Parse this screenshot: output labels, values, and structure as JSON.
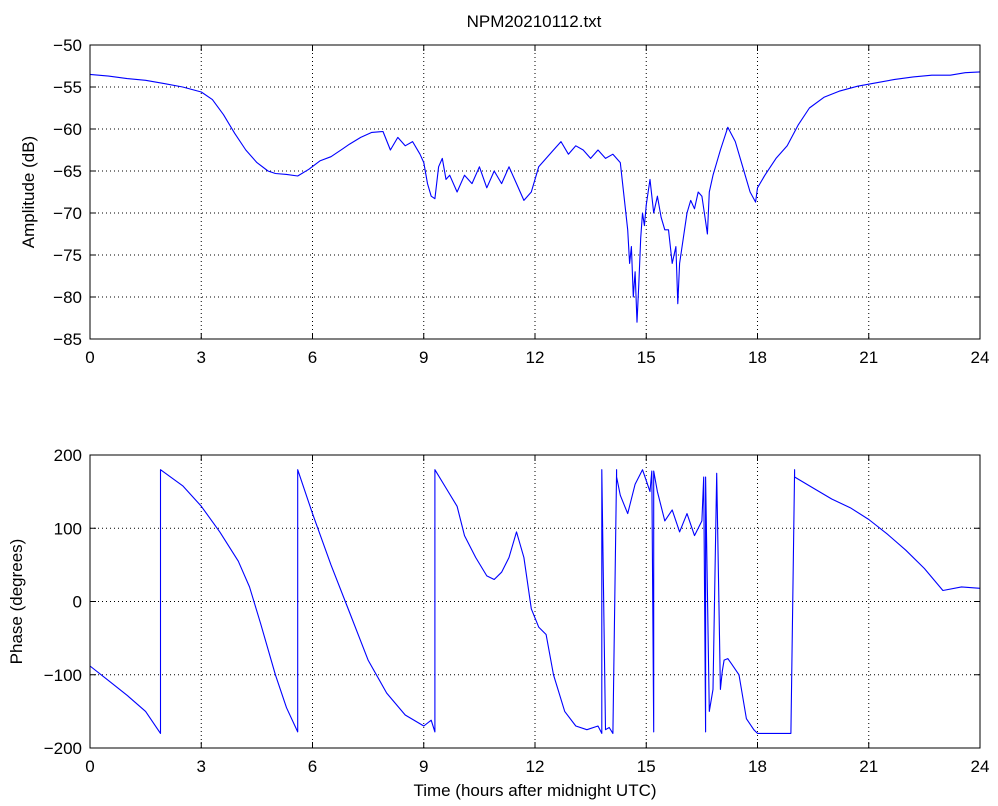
{
  "title": "NPM20210112.txt",
  "colors": {
    "series": "#0000ff",
    "axis": "#000000",
    "grid": "#000000",
    "background": "#ffffff"
  },
  "chart_data": [
    {
      "type": "line",
      "title": "NPM20210112.txt",
      "xlabel": "",
      "ylabel": "Amplitude (dB)",
      "xlim": [
        0,
        24
      ],
      "ylim": [
        -85,
        -50
      ],
      "xticks": [
        0,
        3,
        6,
        9,
        12,
        15,
        18,
        21,
        24
      ],
      "yticks": [
        -85,
        -80,
        -75,
        -70,
        -65,
        -60,
        -55,
        -50
      ],
      "grid": true,
      "series": [
        {
          "x": [
            0,
            0.5,
            1,
            1.5,
            2,
            2.5,
            3,
            3.3,
            3.6,
            3.9,
            4.2,
            4.5,
            4.8,
            5.0,
            5.3,
            5.6,
            5.9,
            6.2,
            6.5,
            6.8,
            7.0,
            7.3,
            7.6,
            7.9,
            8.1,
            8.3,
            8.5,
            8.7,
            8.9,
            9.0,
            9.1,
            9.2,
            9.3,
            9.4,
            9.5,
            9.6,
            9.7,
            9.9,
            10.1,
            10.3,
            10.5,
            10.7,
            10.9,
            11.1,
            11.3,
            11.5,
            11.7,
            11.9,
            12.1,
            12.3,
            12.5,
            12.7,
            12.9,
            13.1,
            13.3,
            13.5,
            13.7,
            13.9,
            14.1,
            14.3,
            14.4,
            14.5,
            14.55,
            14.6,
            14.65,
            14.7,
            14.75,
            14.8,
            14.85,
            14.9,
            14.95,
            15.0,
            15.1,
            15.2,
            15.3,
            15.4,
            15.5,
            15.6,
            15.7,
            15.8,
            15.85,
            15.9,
            16.0,
            16.1,
            16.2,
            16.3,
            16.4,
            16.5,
            16.6,
            16.65,
            16.7,
            16.8,
            16.9,
            17.0,
            17.2,
            17.4,
            17.6,
            17.8,
            17.95,
            18.0,
            18.2,
            18.5,
            18.8,
            19.1,
            19.4,
            19.8,
            20.2,
            20.7,
            21.2,
            21.7,
            22.2,
            22.7,
            23.2,
            23.6,
            24.0
          ],
          "y": [
            -53.5,
            -53.7,
            -54.0,
            -54.2,
            -54.6,
            -55.0,
            -55.6,
            -56.5,
            -58.3,
            -60.5,
            -62.5,
            -64.0,
            -65.0,
            -65.3,
            -65.4,
            -65.6,
            -64.8,
            -63.8,
            -63.3,
            -62.4,
            -61.8,
            -61.0,
            -60.4,
            -60.3,
            -62.5,
            -61.0,
            -62.0,
            -61.5,
            -63.0,
            -64.0,
            -66.5,
            -68.0,
            -68.3,
            -64.5,
            -63.5,
            -66.0,
            -65.5,
            -67.5,
            -65.5,
            -66.5,
            -64.5,
            -67.0,
            -65.0,
            -66.5,
            -64.5,
            -66.5,
            -68.5,
            -67.5,
            -64.5,
            -63.5,
            -62.5,
            -61.5,
            -63.0,
            -62.0,
            -62.5,
            -63.5,
            -62.5,
            -63.5,
            -63.0,
            -64.0,
            -68.0,
            -72.0,
            -76.0,
            -74.0,
            -80.0,
            -77.0,
            -83.0,
            -78.5,
            -73.0,
            -70.0,
            -71.5,
            -69.0,
            -66.0,
            -70.0,
            -68.0,
            -70.5,
            -72.0,
            -72.0,
            -76.0,
            -74.0,
            -80.8,
            -76.0,
            -73.0,
            -70.0,
            -68.5,
            -69.5,
            -67.5,
            -68.0,
            -71.0,
            -72.5,
            -67.5,
            -65.5,
            -64.0,
            -62.5,
            -59.8,
            -61.5,
            -64.5,
            -67.5,
            -68.7,
            -67.0,
            -65.5,
            -63.5,
            -62.0,
            -59.5,
            -57.5,
            -56.2,
            -55.5,
            -54.9,
            -54.5,
            -54.1,
            -53.8,
            -53.6,
            -53.6,
            -53.3,
            -53.2
          ]
        }
      ]
    },
    {
      "type": "line",
      "title": "",
      "xlabel": "Time (hours after midnight UTC)",
      "ylabel": "Phase (degrees)",
      "xlim": [
        0,
        24
      ],
      "ylim": [
        -200,
        200
      ],
      "xticks": [
        0,
        3,
        6,
        9,
        12,
        15,
        18,
        21,
        24
      ],
      "yticks": [
        -200,
        -100,
        0,
        100,
        200
      ],
      "grid": true,
      "series": [
        {
          "x": [
            0,
            0.5,
            1,
            1.5,
            1.9,
            1.9,
            2.5,
            3,
            3.5,
            4,
            4.3,
            4.6,
            5.0,
            5.3,
            5.6,
            5.6,
            6.0,
            6.5,
            7.0,
            7.5,
            8.0,
            8.5,
            9.0,
            9.2,
            9.3,
            9.3,
            9.6,
            9.9,
            10.1,
            10.4,
            10.7,
            10.9,
            11.1,
            11.3,
            11.5,
            11.7,
            11.9,
            12.1,
            12.3,
            12.5,
            12.8,
            13.1,
            13.4,
            13.7,
            13.8,
            13.8,
            13.9,
            14.0,
            14.1,
            14.2,
            14.2,
            14.3,
            14.5,
            14.7,
            14.9,
            15.1,
            15.15,
            15.2,
            15.2,
            15.3,
            15.5,
            15.7,
            15.9,
            16.1,
            16.3,
            16.5,
            16.55,
            16.6,
            16.6,
            16.7,
            16.8,
            16.9,
            17.0,
            17.05,
            17.1,
            17.2,
            17.3,
            17.5,
            17.7,
            17.9,
            18.0,
            18.3,
            18.6,
            18.9,
            19.0,
            19.0,
            19.5,
            20.0,
            20.5,
            21.0,
            21.5,
            22.0,
            22.5,
            23.0,
            23.5,
            24.0
          ],
          "y": [
            -88,
            -108,
            -128,
            -150,
            -180,
            180,
            158,
            130,
            95,
            55,
            20,
            -30,
            -100,
            -145,
            -178,
            180,
            120,
            50,
            -15,
            -80,
            -125,
            -155,
            -170,
            -162,
            -178,
            180,
            155,
            130,
            90,
            60,
            35,
            30,
            40,
            60,
            95,
            60,
            -10,
            -35,
            -45,
            -100,
            -150,
            -170,
            -175,
            -170,
            -180,
            180,
            -175,
            -172,
            -180,
            180,
            170,
            145,
            120,
            160,
            180,
            150,
            178,
            -178,
            178,
            150,
            110,
            125,
            95,
            120,
            90,
            110,
            170,
            -178,
            170,
            -150,
            -120,
            175,
            -120,
            -95,
            -80,
            -78,
            -85,
            -100,
            -160,
            -175,
            -180,
            -180,
            -180,
            -180,
            180,
            170,
            155,
            140,
            128,
            112,
            92,
            70,
            45,
            15,
            20,
            18
          ]
        }
      ]
    }
  ]
}
